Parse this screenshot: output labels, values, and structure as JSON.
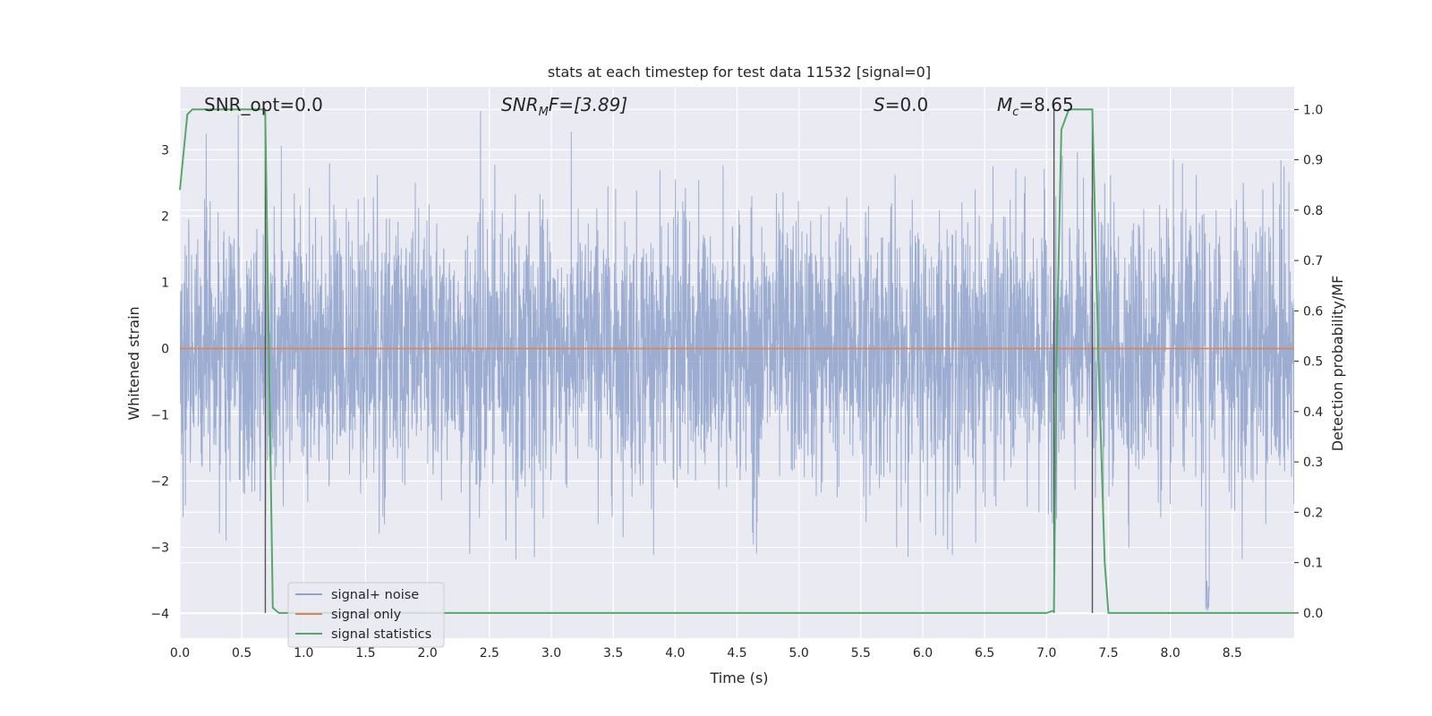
{
  "chart_data": {
    "type": "line",
    "title": "stats at each timestep for test data 11532 [signal=0]",
    "xlabel": "Time (s)",
    "ylabel_left": "Whitened strain",
    "ylabel_right": "Detection probability/MF",
    "xlim": [
      0.0,
      9.0
    ],
    "ylim_left": [
      -4.37,
      3.95
    ],
    "ylim_right": [
      -0.05,
      1.045
    ],
    "x_ticks": [
      "0.0",
      "0.5",
      "1.0",
      "1.5",
      "2.0",
      "2.5",
      "3.0",
      "3.5",
      "4.0",
      "4.5",
      "5.0",
      "5.5",
      "6.0",
      "6.5",
      "7.0",
      "7.5",
      "8.0",
      "8.5"
    ],
    "y_left_ticks": [
      "3",
      "2",
      "1",
      "0",
      "−1",
      "−2",
      "−3",
      "−4"
    ],
    "y_right_ticks": [
      "1.0",
      "0.9",
      "0.8",
      "0.7",
      "0.6",
      "0.5",
      "0.4",
      "0.3",
      "0.2",
      "0.1",
      "0.0"
    ],
    "grid": true,
    "legend_position": "bottom-left",
    "annotations": {
      "snr_opt": "SNR_opt=0.0",
      "snr_mf_label": "SNR",
      "snr_mf_sub": "M",
      "snr_mf_rest": "F=[3.89]",
      "s_label": "S",
      "s_rest": "=0.0",
      "mc_label": "M",
      "mc_sub": "c",
      "mc_rest": "=8.65"
    },
    "series": [
      {
        "name": "signal+ noise",
        "color": "#8ea2cb",
        "axis": "left",
        "description_range": [
          -3.2,
          3.6
        ],
        "notable_dip": {
          "x": 8.3,
          "y": -4.0
        }
      },
      {
        "name": "signal only",
        "color": "#dd8452",
        "axis": "left",
        "x": [
          0.0,
          9.0
        ],
        "y": [
          0.0,
          0.0
        ]
      },
      {
        "name": "signal statistics",
        "color": "#55a868",
        "axis": "right",
        "x": [
          0.0,
          0.06,
          0.1,
          0.68,
          0.69,
          0.72,
          0.75,
          0.8,
          7.0,
          7.06,
          7.08,
          7.12,
          7.18,
          7.37,
          7.42,
          7.47,
          7.5,
          9.0
        ],
        "y": [
          0.84,
          0.99,
          1.0,
          1.0,
          0.99,
          0.5,
          0.01,
          0.0,
          0.0,
          0.005,
          0.5,
          0.96,
          1.0,
          1.0,
          0.5,
          0.1,
          0.0,
          0.0
        ]
      }
    ],
    "vertical_markers": [
      0.69,
      7.06,
      7.37
    ]
  }
}
